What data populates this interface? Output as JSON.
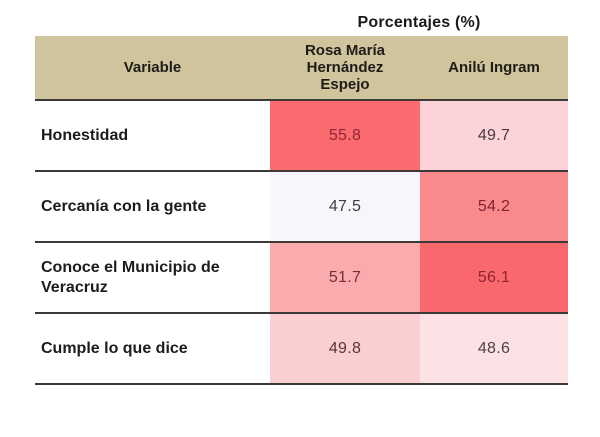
{
  "title": "Porcentajes (%)",
  "colors": {
    "header_bg": "#cfc49c",
    "row_border": "#3b3a39",
    "page_bg": "#ffffff"
  },
  "table": {
    "headers": {
      "variable": "Variable",
      "candidate1": "Rosa María Hernández Espejo",
      "candidate2": "Anilú Ingram"
    },
    "rows": [
      {
        "variable": "Honestidad",
        "c1": {
          "value": "55.8",
          "bg": "#fa6a6e",
          "fg": "#8f2634"
        },
        "c2": {
          "value": "49.7",
          "bg": "#fbd3d8",
          "fg": "#4b3a41"
        }
      },
      {
        "variable": "Cercanía con la gente",
        "c1": {
          "value": "47.5",
          "bg": "#f8f6fa",
          "fg": "#3f3d46"
        },
        "c2": {
          "value": "54.2",
          "bg": "#fa898c",
          "fg": "#7e2531"
        }
      },
      {
        "variable": "Conoce el Municipio de Veracruz",
        "c1": {
          "value": "51.7",
          "bg": "#fbaaae",
          "fg": "#743039"
        },
        "c2": {
          "value": "56.1",
          "bg": "#f9686c",
          "fg": "#8f2431"
        }
      },
      {
        "variable": "Cumple lo que dice",
        "c1": {
          "value": "49.8",
          "bg": "#fbced2",
          "fg": "#5b3138"
        },
        "c2": {
          "value": "48.6",
          "bg": "#fce2e4",
          "fg": "#4b4046"
        }
      }
    ]
  },
  "chart_data": {
    "type": "table",
    "title": "Porcentajes (%)",
    "categories": [
      "Honestidad",
      "Cercanía con la gente",
      "Conoce el Municipio de Veracruz",
      "Cumple lo que dice"
    ],
    "series": [
      {
        "name": "Rosa María Hernández Espejo",
        "values": [
          55.8,
          47.5,
          51.7,
          49.8
        ]
      },
      {
        "name": "Anilú Ingram",
        "values": [
          49.7,
          54.2,
          56.1,
          48.6
        ]
      }
    ],
    "value_unit": "%",
    "shading": "higher value per row shaded darker red (heatmap style)"
  }
}
